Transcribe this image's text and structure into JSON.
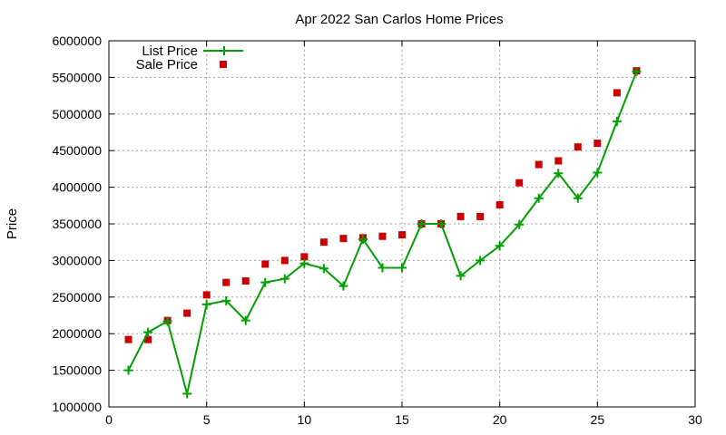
{
  "colors": {
    "list_price": "#00a000",
    "sale_price": "#cc0000",
    "grid": "#a0a0a0"
  },
  "chart_data": {
    "type": "line",
    "title": "Apr 2022 San Carlos Home Prices",
    "xlabel": "",
    "ylabel": "Price",
    "xlim": [
      0,
      30
    ],
    "ylim": [
      1000000,
      6000000
    ],
    "x_ticks": [
      0,
      5,
      10,
      15,
      20,
      25,
      30
    ],
    "y_ticks": [
      1000000,
      1500000,
      2000000,
      2500000,
      3000000,
      3500000,
      4000000,
      4500000,
      5000000,
      5500000,
      6000000
    ],
    "grid": true,
    "legend_position": "top-left",
    "series": [
      {
        "name": "List Price",
        "style": "line-with-plus-markers",
        "x": [
          1,
          2,
          3,
          4,
          5,
          6,
          7,
          8,
          9,
          10,
          11,
          12,
          13,
          14,
          15,
          16,
          17,
          18,
          19,
          20,
          21,
          22,
          23,
          24,
          25,
          26,
          27
        ],
        "values": [
          1500000,
          2020000,
          2170000,
          1180000,
          2400000,
          2450000,
          2180000,
          2700000,
          2750000,
          2960000,
          2890000,
          2650000,
          3290000,
          2900000,
          2900000,
          3500000,
          3500000,
          2790000,
          3000000,
          3200000,
          3490000,
          3850000,
          4190000,
          3850000,
          4200000,
          4900000,
          5580000
        ]
      },
      {
        "name": "Sale Price",
        "style": "square-markers",
        "x": [
          1,
          2,
          3,
          4,
          5,
          6,
          7,
          8,
          9,
          10,
          11,
          12,
          13,
          14,
          15,
          16,
          17,
          18,
          19,
          20,
          21,
          22,
          23,
          24,
          25,
          26,
          27
        ],
        "values": [
          1920000,
          1920000,
          2180000,
          2280000,
          2530000,
          2700000,
          2720000,
          2950000,
          3000000,
          3050000,
          3250000,
          3300000,
          3310000,
          3330000,
          3350000,
          3500000,
          3500000,
          3600000,
          3600000,
          3760000,
          4060000,
          4310000,
          4360000,
          4550000,
          4600000,
          5290000,
          5590000
        ]
      }
    ]
  }
}
